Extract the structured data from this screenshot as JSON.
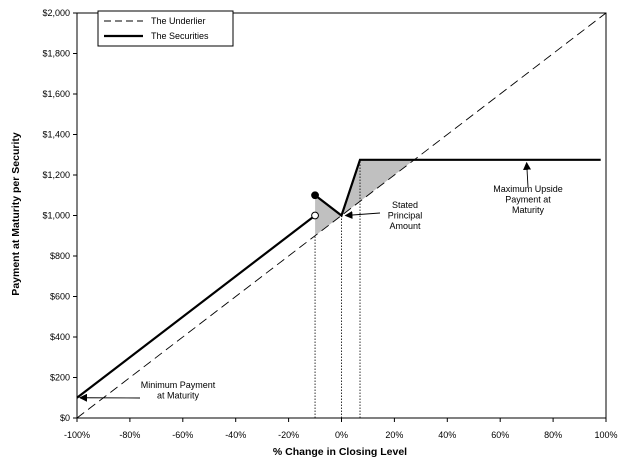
{
  "chart_data": {
    "type": "line",
    "xlabel": "% Change in Closing Level",
    "ylabel": "Payment at Maturity per Security",
    "xlim": [
      -100,
      100
    ],
    "ylim": [
      0,
      2000
    ],
    "x_ticks": [
      "-100%",
      "-80%",
      "-60%",
      "-40%",
      "-20%",
      "0%",
      "20%",
      "40%",
      "60%",
      "80%",
      "100%"
    ],
    "y_ticks": [
      "$0",
      "$200",
      "$400",
      "$600",
      "$800",
      "$1,000",
      "$1,200",
      "$1,400",
      "$1,600",
      "$1,800",
      "$2,000"
    ],
    "legend": {
      "position": "top-left"
    },
    "series": [
      {
        "name": "The Underlier",
        "style": "dashed",
        "points": [
          [
            -100,
            0
          ],
          [
            100,
            2000
          ]
        ]
      },
      {
        "name": "The Securities",
        "style": "solid",
        "segments": [
          [
            [
              -100,
              100
            ],
            [
              -10,
              1000
            ]
          ],
          [
            [
              -10,
              1100
            ],
            [
              0,
              1000
            ],
            [
              7,
              1275
            ],
            [
              98,
              1275
            ]
          ]
        ],
        "markers": [
          {
            "x": -10,
            "y": 1100,
            "fill": "filled"
          },
          {
            "x": -10,
            "y": 1000,
            "fill": "open"
          }
        ]
      }
    ],
    "shaded_regions": [
      {
        "polygon": [
          [
            -10,
            1100
          ],
          [
            0,
            1000
          ],
          [
            -10,
            900
          ]
        ],
        "color": "#c0c0c0"
      },
      {
        "polygon": [
          [
            0,
            1000
          ],
          [
            7,
            1275
          ],
          [
            27.5,
            1275
          ]
        ],
        "color": "#c0c0c0"
      }
    ],
    "reference_lines": [
      {
        "x": -10,
        "y_from": 0,
        "y_to": 900,
        "style": "dotted"
      },
      {
        "x": 0,
        "y_from": 0,
        "y_to": 1000,
        "style": "dotted"
      },
      {
        "x": 7,
        "y_from": 0,
        "y_to": 1275,
        "style": "dotted"
      }
    ],
    "annotations": [
      {
        "id": "min",
        "lines": [
          "Minimum Payment",
          "at Maturity"
        ],
        "arrow_to": [
          -100,
          100
        ]
      },
      {
        "id": "principal",
        "lines": [
          "Stated",
          "Principal",
          "Amount"
        ],
        "arrow_to": [
          0,
          1000
        ]
      },
      {
        "id": "max",
        "lines": [
          "Maximum Upside",
          "Payment at",
          "Maturity"
        ],
        "arrow_to": [
          70,
          1275
        ]
      }
    ],
    "colors": {
      "line": "#000000",
      "shade": "#c0c0c0"
    }
  }
}
